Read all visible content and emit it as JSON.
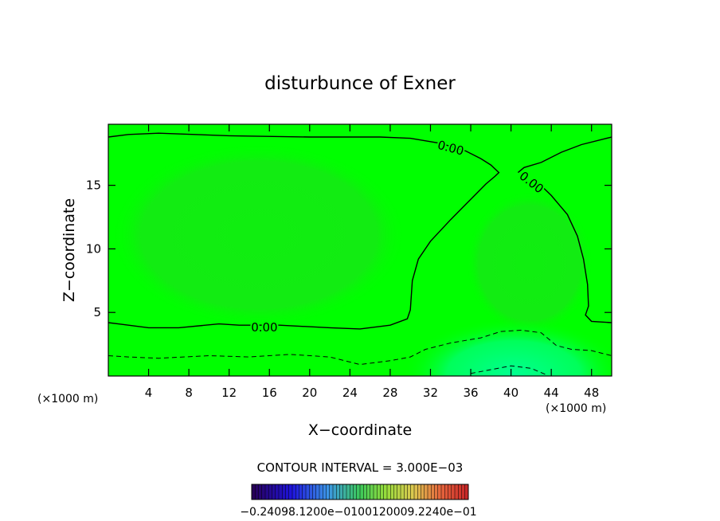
{
  "chart_data": {
    "type": "contour",
    "title": "disturbunce of Exner",
    "xlabel": "X−coordinate",
    "ylabel": "Z−coordinate",
    "x_unit_label": "(×1000 m)",
    "z_unit_label": "(×1000 m)",
    "xlim": [
      0,
      50
    ],
    "ylim": [
      0,
      19.8
    ],
    "x_ticks": [
      4,
      8,
      12,
      16,
      20,
      24,
      28,
      32,
      36,
      40,
      44,
      48
    ],
    "y_ticks": [
      5,
      10,
      15
    ],
    "contour_interval_label": "CONTOUR INTERVAL = 3.000E−03",
    "contour_labels": [
      {
        "text": "0.00",
        "x": 15.5,
        "z": 3.8,
        "rotation": 0
      },
      {
        "text": "0.00",
        "x": 34.0,
        "z": 17.9,
        "rotation": 15
      },
      {
        "text": "0.00",
        "x": 42.0,
        "z": 15.2,
        "rotation": 38
      }
    ],
    "contours": [
      {
        "level": 0.0,
        "style": "solid",
        "points": [
          [
            0,
            18.8
          ],
          [
            2,
            19.0
          ],
          [
            5,
            19.1
          ],
          [
            12,
            18.9
          ],
          [
            20,
            18.8
          ],
          [
            27,
            18.8
          ],
          [
            30,
            18.7
          ],
          [
            33,
            18.3
          ],
          [
            35.5,
            17.7
          ],
          [
            37,
            17.1
          ],
          [
            38,
            16.6
          ],
          [
            38.8,
            16.0
          ],
          [
            38.4,
            15.7
          ],
          [
            37.5,
            15.1
          ],
          [
            36,
            13.9
          ],
          [
            34,
            12.3
          ],
          [
            32,
            10.6
          ],
          [
            30.8,
            9.2
          ],
          [
            30.2,
            7.5
          ],
          [
            30.0,
            5.2
          ],
          [
            29.7,
            4.5
          ],
          [
            28,
            4.0
          ],
          [
            25,
            3.7
          ],
          [
            22,
            3.8
          ],
          [
            17,
            4.0
          ],
          [
            15.5,
            4.0
          ],
          [
            13,
            4.0
          ],
          [
            11,
            4.1
          ],
          [
            7,
            3.8
          ],
          [
            4,
            3.8
          ],
          [
            1,
            4.1
          ],
          [
            0,
            4.2
          ]
        ]
      },
      {
        "level": 0.0,
        "style": "solid",
        "points": [
          [
            40.7,
            16.0
          ],
          [
            41.3,
            16.4
          ],
          [
            43,
            16.8
          ],
          [
            45,
            17.6
          ],
          [
            47,
            18.2
          ],
          [
            50,
            18.8
          ]
        ]
      },
      {
        "level": 0.0,
        "style": "solid",
        "points": [
          [
            42.3,
            15.5
          ],
          [
            44,
            14.2
          ],
          [
            45.6,
            12.7
          ],
          [
            46.6,
            11.0
          ],
          [
            47.2,
            9.2
          ],
          [
            47.6,
            7.2
          ],
          [
            47.7,
            5.5
          ],
          [
            47.4,
            4.8
          ],
          [
            48,
            4.3
          ],
          [
            50,
            4.2
          ]
        ]
      },
      {
        "level": -0.003,
        "style": "dashed",
        "points": [
          [
            0,
            1.6
          ],
          [
            2,
            1.5
          ],
          [
            5,
            1.4
          ],
          [
            10,
            1.6
          ],
          [
            14,
            1.5
          ],
          [
            18,
            1.7
          ],
          [
            22,
            1.5
          ],
          [
            25,
            0.9
          ],
          [
            28,
            1.2
          ],
          [
            30,
            1.5
          ],
          [
            31.5,
            2.1
          ],
          [
            34,
            2.6
          ],
          [
            37,
            3.0
          ],
          [
            39,
            3.5
          ],
          [
            41,
            3.6
          ],
          [
            43,
            3.4
          ],
          [
            44.5,
            2.4
          ],
          [
            46,
            2.1
          ],
          [
            48,
            2.0
          ],
          [
            50,
            1.6
          ]
        ]
      },
      {
        "level": -0.006,
        "style": "dashed",
        "points": [
          [
            36,
            0.2
          ],
          [
            38,
            0.5
          ],
          [
            40,
            0.8
          ],
          [
            42,
            0.6
          ],
          [
            43.5,
            0.1
          ]
        ]
      }
    ],
    "colorbar": {
      "min_label": "−0.240",
      "tick_labels": [
        "−0.240",
        "−0.120e−01",
        "0.0",
        "0.120e−01",
        "0.240e−01"
      ],
      "printed_text": "−0.24098.1200e−0100120009.2240e−01"
    },
    "field_colors": {
      "background": "#00ff00",
      "interior_slightly_lower": "#0ef20e",
      "bottom_minimum": "#00ff8a"
    }
  }
}
